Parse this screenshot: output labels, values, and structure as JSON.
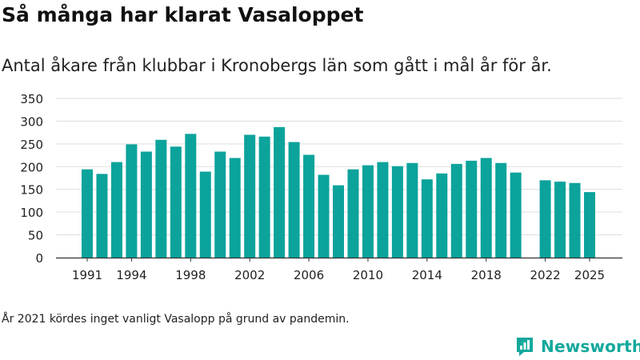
{
  "title": "Så många har klarat Vasaloppet",
  "subtitle": "Antal åkare från klubbar i Kronobergs län som gått i mål år för år.",
  "footnote": "År 2021 kördes inget vanligt Vasalopp på grund av pandemin.",
  "logo": {
    "name": "Newsworthy",
    "icon": "newsworthy-chart-icon"
  },
  "colors": {
    "bar": "#0ba39b",
    "grid": "#dddddd",
    "axis": "#333333",
    "text": "#222222",
    "brand": "#12a89c"
  },
  "chart_data": {
    "type": "bar",
    "title": "Så många har klarat Vasaloppet",
    "xlabel": "",
    "ylabel": "",
    "ylim": [
      0,
      350
    ],
    "yticks": [
      0,
      50,
      100,
      150,
      200,
      250,
      300,
      350
    ],
    "xticks": [
      1991,
      1994,
      1998,
      2002,
      2006,
      2010,
      2014,
      2018,
      2022,
      2025
    ],
    "grid": true,
    "series": [
      {
        "name": "Antal åkare",
        "points": [
          {
            "year": 1991,
            "value": 194
          },
          {
            "year": 1992,
            "value": 184
          },
          {
            "year": 1993,
            "value": 210
          },
          {
            "year": 1994,
            "value": 249
          },
          {
            "year": 1995,
            "value": 233
          },
          {
            "year": 1996,
            "value": 259
          },
          {
            "year": 1997,
            "value": 244
          },
          {
            "year": 1998,
            "value": 272
          },
          {
            "year": 1999,
            "value": 189
          },
          {
            "year": 2000,
            "value": 233
          },
          {
            "year": 2001,
            "value": 219
          },
          {
            "year": 2002,
            "value": 270
          },
          {
            "year": 2003,
            "value": 266
          },
          {
            "year": 2004,
            "value": 287
          },
          {
            "year": 2005,
            "value": 254
          },
          {
            "year": 2006,
            "value": 226
          },
          {
            "year": 2007,
            "value": 182
          },
          {
            "year": 2008,
            "value": 159
          },
          {
            "year": 2009,
            "value": 194
          },
          {
            "year": 2010,
            "value": 203
          },
          {
            "year": 2011,
            "value": 210
          },
          {
            "year": 2012,
            "value": 201
          },
          {
            "year": 2013,
            "value": 208
          },
          {
            "year": 2014,
            "value": 172
          },
          {
            "year": 2015,
            "value": 185
          },
          {
            "year": 2016,
            "value": 206
          },
          {
            "year": 2017,
            "value": 213
          },
          {
            "year": 2018,
            "value": 219
          },
          {
            "year": 2019,
            "value": 208
          },
          {
            "year": 2020,
            "value": 187
          },
          {
            "year": 2022,
            "value": 170
          },
          {
            "year": 2023,
            "value": 167
          },
          {
            "year": 2024,
            "value": 164
          },
          {
            "year": 2025,
            "value": 144
          }
        ]
      }
    ]
  }
}
